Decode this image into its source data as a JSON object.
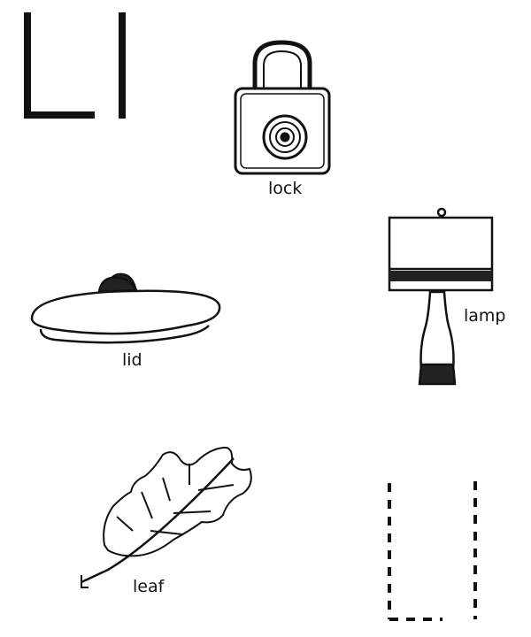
{
  "worksheet": {
    "letter_uppercase": "L",
    "letter_lowercase": "l",
    "pictures": [
      {
        "word": "lock",
        "icon": "padlock-icon"
      },
      {
        "word": "lid",
        "icon": "pot-lid-icon"
      },
      {
        "word": "lamp",
        "icon": "table-lamp-icon"
      },
      {
        "word": "leaf",
        "icon": "leaf-icon"
      }
    ],
    "tracing_guide": {
      "icon": "dashed-letter-l-trace"
    }
  }
}
